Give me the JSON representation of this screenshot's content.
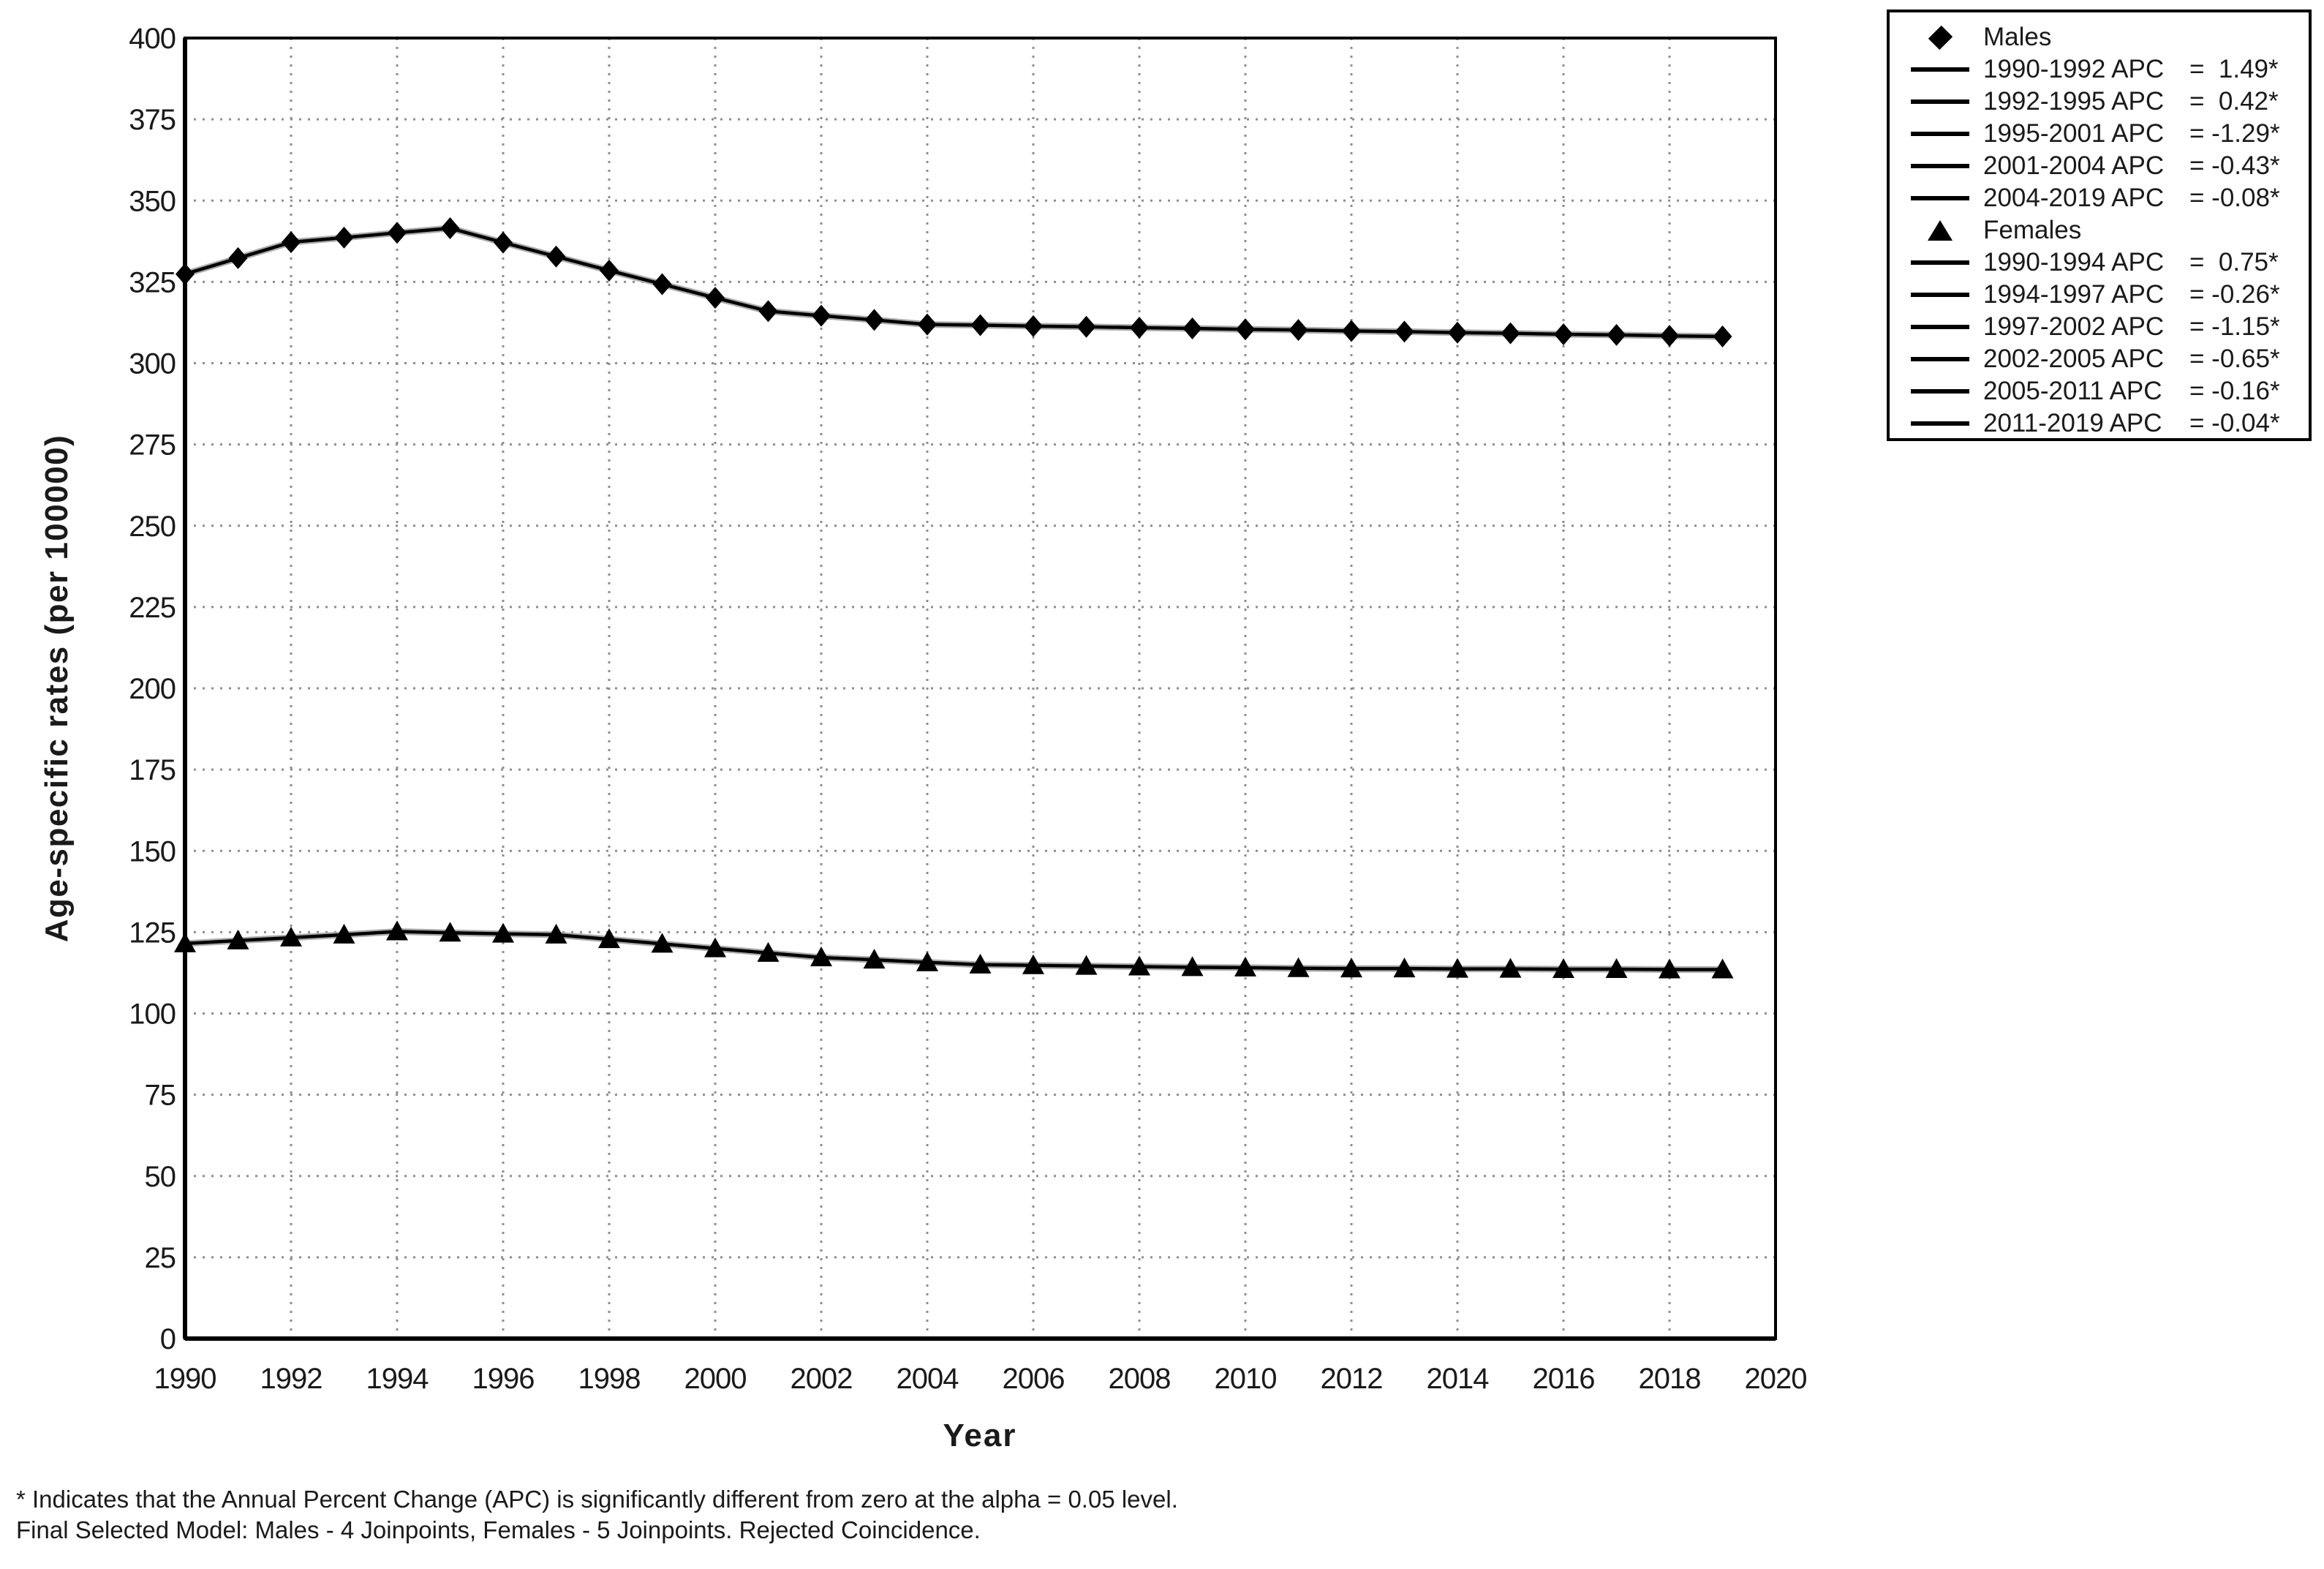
{
  "page": {
    "background": "#ffffff",
    "text_color": "#1a1a1a",
    "grid_color": "#8e8e8e",
    "line_color": "#000000",
    "observed_halo_color": "#ababab"
  },
  "y_axis": {
    "title": "Age-specific rates (per 100000)",
    "ticks": [
      400,
      375,
      350,
      325,
      300,
      275,
      250,
      225,
      200,
      175,
      150,
      125,
      100,
      75,
      50,
      25,
      0
    ]
  },
  "x_axis": {
    "title": "Year",
    "ticks": [
      1990,
      1992,
      1994,
      1996,
      1998,
      2000,
      2002,
      2004,
      2006,
      2008,
      2010,
      2012,
      2014,
      2016,
      2018,
      2020
    ]
  },
  "legend": {
    "males": {
      "label": "Males",
      "marker": "diamond",
      "segments": [
        {
          "label": "1990-1992 APC",
          "value": "=  1.49*"
        },
        {
          "label": "1992-1995 APC",
          "value": "=  0.42*"
        },
        {
          "label": "1995-2001 APC",
          "value": "= -1.29*"
        },
        {
          "label": "2001-2004 APC",
          "value": "= -0.43*"
        },
        {
          "label": "2004-2019 APC",
          "value": "= -0.08*"
        }
      ]
    },
    "females": {
      "label": "Females",
      "marker": "triangle",
      "segments": [
        {
          "label": "1990-1994 APC",
          "value": "=  0.75*"
        },
        {
          "label": "1994-1997 APC",
          "value": "= -0.26*"
        },
        {
          "label": "1997-2002 APC",
          "value": "= -1.15*"
        },
        {
          "label": "2002-2005 APC",
          "value": "= -0.65*"
        },
        {
          "label": "2005-2011 APC",
          "value": "= -0.16*"
        },
        {
          "label": "2011-2019 APC",
          "value": "= -0.04*"
        }
      ]
    }
  },
  "footnotes": [
    "* Indicates that the Annual Percent Change (APC) is significantly different from zero at the alpha = 0.05 level.",
    "Final Selected Model: Males - 4 Joinpoints, Females - 5 Joinpoints. Rejected Coincidence."
  ],
  "chart_data": {
    "type": "line",
    "title": "",
    "xlabel": "Year",
    "ylabel": "Age-specific rates (per 100000)",
    "xlim": [
      1990,
      2020
    ],
    "ylim": [
      0,
      400
    ],
    "x_step": 2,
    "y_step": 25,
    "grid": true,
    "legend_position": "top-right",
    "x": [
      1990,
      1991,
      1992,
      1993,
      1994,
      1995,
      1996,
      1997,
      1998,
      1999,
      2000,
      2001,
      2002,
      2003,
      2004,
      2005,
      2006,
      2007,
      2008,
      2009,
      2010,
      2011,
      2012,
      2013,
      2014,
      2015,
      2016,
      2017,
      2018,
      2019
    ],
    "series": [
      {
        "name": "Males",
        "marker": "diamond",
        "values": [
          327.4,
          332.3,
          337.2,
          338.6,
          340.1,
          341.5,
          337.1,
          332.8,
          328.5,
          324.3,
          320.1,
          316.0,
          314.6,
          313.3,
          311.9,
          311.7,
          311.4,
          311.2,
          310.9,
          310.7,
          310.4,
          310.2,
          309.9,
          309.7,
          309.4,
          309.2,
          308.9,
          308.7,
          308.4,
          308.2
        ],
        "apc_segments": [
          {
            "range": "1990-1992",
            "apc": 1.49,
            "significant": true
          },
          {
            "range": "1992-1995",
            "apc": 0.42,
            "significant": true
          },
          {
            "range": "1995-2001",
            "apc": -1.29,
            "significant": true
          },
          {
            "range": "2001-2004",
            "apc": -0.43,
            "significant": true
          },
          {
            "range": "2004-2019",
            "apc": -0.08,
            "significant": true
          }
        ]
      },
      {
        "name": "Females",
        "marker": "triangle",
        "values": [
          121.5,
          122.4,
          123.3,
          124.2,
          125.2,
          124.8,
          124.5,
          124.2,
          122.8,
          121.4,
          120.0,
          118.6,
          117.2,
          116.5,
          115.7,
          115.0,
          114.8,
          114.6,
          114.4,
          114.2,
          114.1,
          113.9,
          113.8,
          113.8,
          113.7,
          113.7,
          113.6,
          113.6,
          113.5,
          113.5
        ],
        "apc_segments": [
          {
            "range": "1990-1994",
            "apc": 0.75,
            "significant": true
          },
          {
            "range": "1994-1997",
            "apc": -0.26,
            "significant": true
          },
          {
            "range": "1997-2002",
            "apc": -1.15,
            "significant": true
          },
          {
            "range": "2002-2005",
            "apc": -0.65,
            "significant": true
          },
          {
            "range": "2005-2011",
            "apc": -0.16,
            "significant": true
          },
          {
            "range": "2011-2019",
            "apc": -0.04,
            "significant": true
          }
        ]
      }
    ]
  }
}
